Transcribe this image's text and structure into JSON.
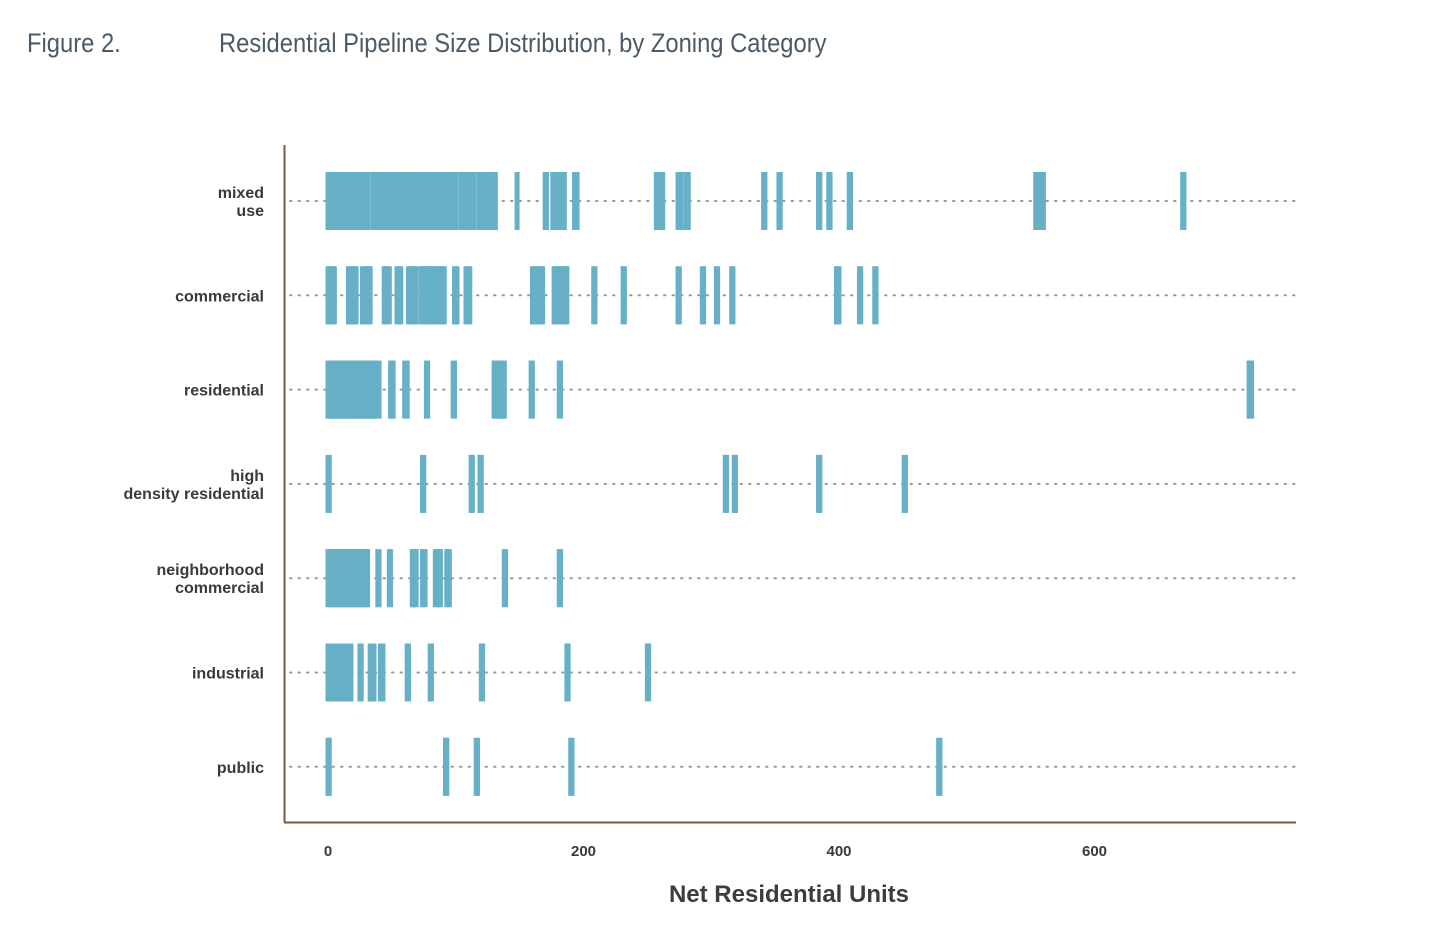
{
  "figure": {
    "label": "Figure 2.",
    "title": "Residential Pipeline Size Distribution, by Zoning Category"
  },
  "colors": {
    "mark": "#67b0c7",
    "axis": "#7a5a45",
    "dots": "#9a9a9a",
    "text": "#3a3a3a",
    "header": "#4a5a66"
  },
  "chart_data": {
    "type": "strip",
    "xlabel": "Net Residential Units",
    "xlim": [
      -35,
      760
    ],
    "xticks": [
      0,
      200,
      400,
      600
    ],
    "grid": false,
    "categories": [
      {
        "lines": [
          "mixed",
          "use"
        ],
        "values": [
          0,
          2,
          3,
          4,
          5,
          6,
          7,
          8,
          9,
          10,
          11,
          12,
          13,
          14,
          15,
          16,
          17,
          18,
          19,
          20,
          21,
          22,
          23,
          24,
          25,
          26,
          27,
          28,
          29,
          30,
          31,
          35,
          36,
          37,
          38,
          39,
          40,
          41,
          42,
          43,
          44,
          45,
          46,
          47,
          50,
          51,
          52,
          53,
          54,
          55,
          56,
          57,
          58,
          59,
          60,
          61,
          62,
          63,
          64,
          65,
          66,
          67,
          68,
          69,
          70,
          71,
          72,
          73,
          74,
          75,
          76,
          77,
          78,
          79,
          80,
          81,
          82,
          83,
          84,
          85,
          86,
          87,
          88,
          89,
          90,
          91,
          92,
          93,
          94,
          95,
          96,
          97,
          98,
          99,
          100,
          104,
          105,
          106,
          107,
          108,
          109,
          110,
          111,
          112,
          113,
          114,
          118,
          119,
          120,
          121,
          124,
          125,
          126,
          127,
          128,
          129,
          130,
          131,
          148,
          170,
          171,
          176,
          177,
          178,
          181,
          182,
          184,
          185,
          193,
          195,
          257,
          258,
          259,
          260,
          261,
          262,
          274,
          275,
          276,
          280,
          281,
          282,
          341,
          342,
          353,
          354,
          384,
          385,
          392,
          393,
          408,
          409,
          554,
          555,
          556,
          557,
          558,
          559,
          560,
          669,
          670
        ]
      },
      {
        "lines": [
          "commercial"
        ],
        "values": [
          0,
          1,
          2,
          3,
          4,
          5,
          16,
          17,
          18,
          19,
          20,
          21,
          22,
          27,
          28,
          29,
          30,
          31,
          32,
          33,
          44,
          45,
          46,
          47,
          48,
          54,
          55,
          56,
          57,
          63,
          64,
          65,
          66,
          67,
          68,
          69,
          73,
          74,
          75,
          76,
          77,
          78,
          79,
          80,
          81,
          82,
          83,
          84,
          86,
          87,
          88,
          89,
          90,
          91,
          99,
          100,
          101,
          108,
          109,
          110,
          111,
          160,
          161,
          162,
          163,
          164,
          165,
          166,
          167,
          168,
          177,
          178,
          179,
          180,
          181,
          182,
          183,
          184,
          185,
          186,
          187,
          208,
          209,
          231,
          232,
          274,
          275,
          293,
          294,
          304,
          305,
          316,
          317,
          398,
          399,
          400,
          416,
          417,
          428,
          429
        ]
      },
      {
        "lines": [
          "residential"
        ],
        "values": [
          0,
          1,
          2,
          3,
          4,
          5,
          6,
          7,
          8,
          9,
          10,
          11,
          12,
          13,
          14,
          15,
          16,
          17,
          18,
          19,
          20,
          21,
          22,
          23,
          24,
          25,
          26,
          27,
          28,
          29,
          30,
          31,
          32,
          33,
          34,
          35,
          36,
          37,
          38,
          39,
          40,
          49,
          50,
          51,
          60,
          61,
          62,
          77,
          78,
          98,
          99,
          130,
          131,
          132,
          133,
          134,
          135,
          136,
          137,
          138,
          159,
          160,
          181,
          182,
          721,
          722,
          723
        ]
      },
      {
        "lines": [
          "high",
          "density residential"
        ],
        "values": [
          0,
          1,
          74,
          75,
          112,
          113,
          119,
          120,
          311,
          312,
          318,
          319,
          384,
          385,
          451,
          452
        ]
      },
      {
        "lines": [
          "neighborhood",
          "commercial"
        ],
        "values": [
          0,
          1,
          2,
          3,
          4,
          5,
          6,
          7,
          8,
          9,
          10,
          11,
          12,
          13,
          14,
          15,
          16,
          17,
          18,
          19,
          20,
          21,
          22,
          23,
          24,
          25,
          26,
          27,
          28,
          29,
          30,
          31,
          39,
          40,
          48,
          49,
          66,
          67,
          68,
          69,
          74,
          75,
          76,
          84,
          85,
          86,
          87,
          88,
          93,
          94,
          95,
          138,
          139,
          181,
          182
        ]
      },
      {
        "lines": [
          "industrial"
        ],
        "values": [
          0,
          1,
          2,
          3,
          4,
          5,
          6,
          7,
          8,
          9,
          10,
          11,
          12,
          13,
          14,
          15,
          16,
          17,
          18,
          25,
          26,
          33,
          34,
          35,
          36,
          41,
          42,
          43,
          62,
          63,
          80,
          81,
          120,
          121,
          187,
          188,
          250,
          251
        ]
      },
      {
        "lines": [
          "public"
        ],
        "values": [
          0,
          1,
          92,
          93,
          116,
          117,
          190,
          191,
          478,
          479
        ]
      }
    ]
  }
}
